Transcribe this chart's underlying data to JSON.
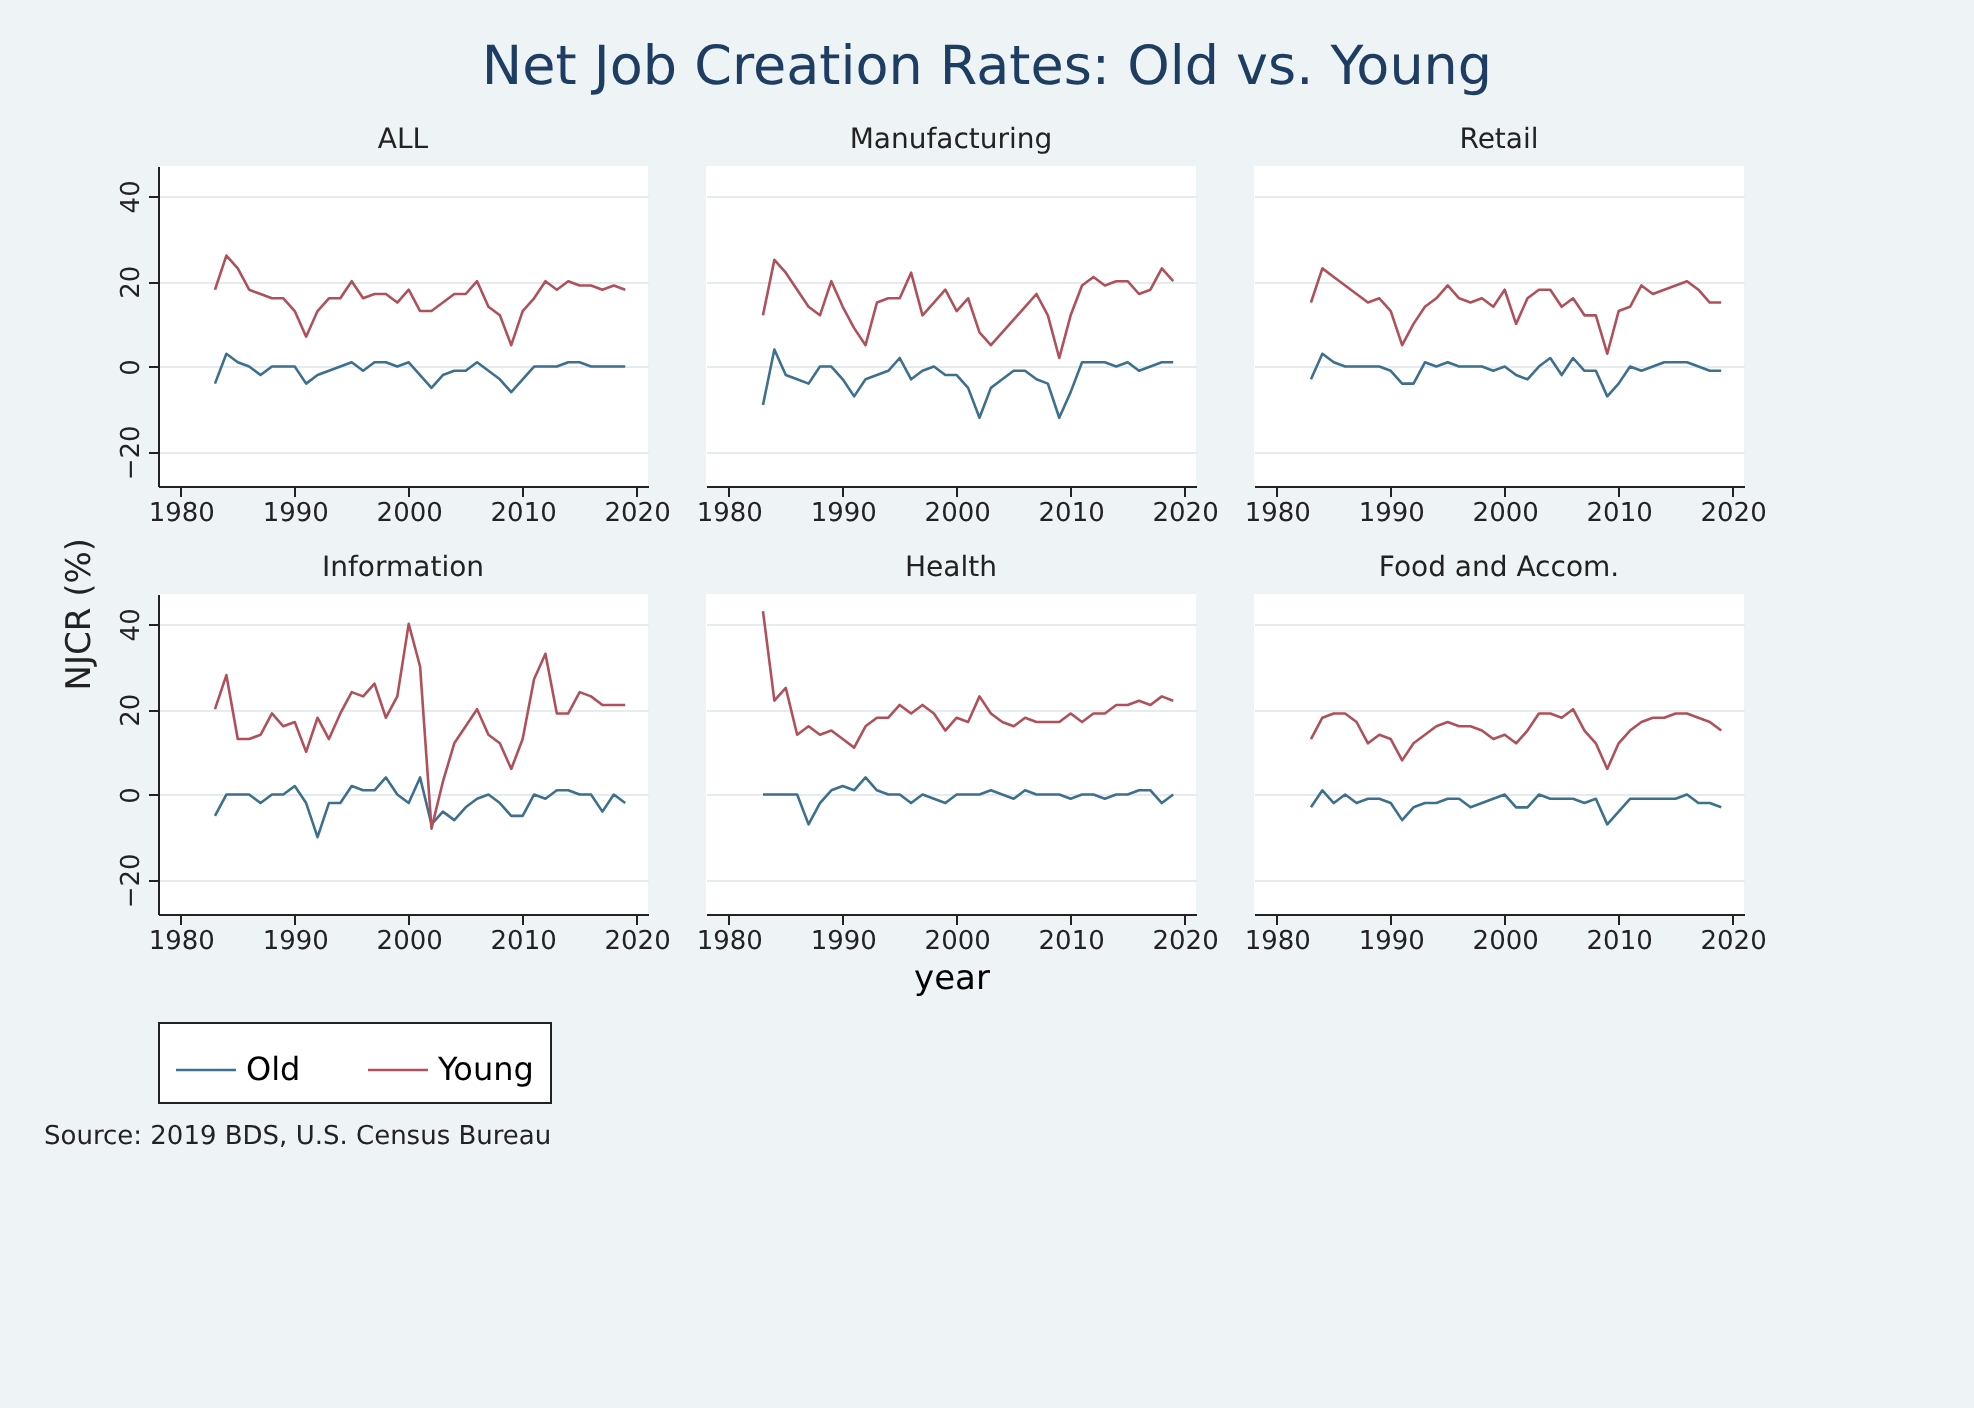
{
  "chart_data": [
    {
      "type": "line",
      "title": "ALL",
      "x": [
        1983,
        1984,
        1985,
        1986,
        1987,
        1988,
        1989,
        1990,
        1991,
        1992,
        1993,
        1994,
        1995,
        1996,
        1997,
        1998,
        1999,
        2000,
        2001,
        2002,
        2003,
        2004,
        2005,
        2006,
        2007,
        2008,
        2009,
        2010,
        2011,
        2012,
        2013,
        2014,
        2015,
        2016,
        2017,
        2018,
        2019
      ],
      "xlim": [
        1978,
        2021
      ],
      "xticks": [
        1980,
        1990,
        2000,
        2010,
        2020
      ],
      "ylim": [
        -28,
        47
      ],
      "yticks": [
        -20,
        0,
        20,
        40
      ],
      "grid": "y",
      "legend": "bottom",
      "series": [
        {
          "name": "Old",
          "color": "#3d6f8e",
          "values": [
            -4,
            3,
            1,
            0,
            -2,
            0,
            0,
            0,
            -4,
            -2,
            -1,
            0,
            1,
            -1,
            1,
            1,
            0,
            1,
            -2,
            -5,
            -2,
            -1,
            -1,
            1,
            -1,
            -3,
            -6,
            -3,
            0,
            0,
            0,
            1,
            1,
            0,
            0,
            0,
            0
          ]
        },
        {
          "name": "Young",
          "color": "#b0505a",
          "values": [
            18,
            26,
            23,
            18,
            17,
            16,
            16,
            13,
            7,
            13,
            16,
            16,
            20,
            16,
            17,
            17,
            15,
            18,
            13,
            13,
            15,
            17,
            17,
            20,
            14,
            12,
            5,
            13,
            16,
            20,
            18,
            20,
            19,
            19,
            18,
            19,
            18
          ]
        }
      ]
    },
    {
      "type": "line",
      "title": "Manufacturing",
      "x": [
        1983,
        1984,
        1985,
        1986,
        1987,
        1988,
        1989,
        1990,
        1991,
        1992,
        1993,
        1994,
        1995,
        1996,
        1997,
        1998,
        1999,
        2000,
        2001,
        2002,
        2003,
        2004,
        2005,
        2006,
        2007,
        2008,
        2009,
        2010,
        2011,
        2012,
        2013,
        2014,
        2015,
        2016,
        2017,
        2018,
        2019
      ],
      "xlim": [
        1978,
        2021
      ],
      "xticks": [
        1980,
        1990,
        2000,
        2010,
        2020
      ],
      "ylim": [
        -28,
        47
      ],
      "yticks": [
        -20,
        0,
        20,
        40
      ],
      "grid": "y",
      "legend": "bottom",
      "tick_labels": "x",
      "series": [
        {
          "name": "Old",
          "color": "#3d6f8e",
          "values": [
            -9,
            4,
            -2,
            -3,
            -4,
            0,
            0,
            -3,
            -7,
            -3,
            -2,
            -1,
            2,
            -3,
            -1,
            0,
            -2,
            -2,
            -5,
            -12,
            -5,
            -3,
            -1,
            -1,
            -3,
            -4,
            -12,
            -6,
            1,
            1,
            1,
            0,
            1,
            -1,
            0,
            1,
            1
          ]
        },
        {
          "name": "Young",
          "color": "#b0505a",
          "values": [
            12,
            25,
            22,
            18,
            14,
            12,
            20,
            14,
            9,
            5,
            15,
            16,
            16,
            22,
            12,
            15,
            18,
            13,
            16,
            8,
            5,
            8,
            11,
            14,
            17,
            12,
            2,
            12,
            19,
            21,
            19,
            20,
            20,
            17,
            18,
            23,
            20
          ]
        }
      ]
    },
    {
      "type": "line",
      "title": "Retail",
      "x": [
        1983,
        1984,
        1985,
        1986,
        1987,
        1988,
        1989,
        1990,
        1991,
        1992,
        1993,
        1994,
        1995,
        1996,
        1997,
        1998,
        1999,
        2000,
        2001,
        2002,
        2003,
        2004,
        2005,
        2006,
        2007,
        2008,
        2009,
        2010,
        2011,
        2012,
        2013,
        2014,
        2015,
        2016,
        2017,
        2018,
        2019
      ],
      "xlim": [
        1978,
        2021
      ],
      "xticks": [
        1980,
        1990,
        2000,
        2010,
        2020
      ],
      "ylim": [
        -28,
        47
      ],
      "yticks": [
        -20,
        0,
        20,
        40
      ],
      "grid": "y",
      "legend": "bottom",
      "tick_labels": "x",
      "series": [
        {
          "name": "Old",
          "color": "#3d6f8e",
          "values": [
            -3,
            3,
            1,
            0,
            0,
            0,
            0,
            -1,
            -4,
            -4,
            1,
            0,
            1,
            0,
            0,
            0,
            -1,
            0,
            -2,
            -3,
            0,
            2,
            -2,
            2,
            -1,
            -1,
            -7,
            -4,
            0,
            -1,
            0,
            1,
            1,
            1,
            0,
            -1,
            -1
          ]
        },
        {
          "name": "Young",
          "color": "#b0505a",
          "values": [
            15,
            23,
            21,
            19,
            17,
            15,
            16,
            13,
            5,
            10,
            14,
            16,
            19,
            16,
            15,
            16,
            14,
            18,
            10,
            16,
            18,
            18,
            14,
            16,
            12,
            12,
            3,
            13,
            14,
            19,
            17,
            18,
            19,
            20,
            18,
            15,
            15
          ]
        }
      ]
    },
    {
      "type": "line",
      "title": "Information",
      "x": [
        1983,
        1984,
        1985,
        1986,
        1987,
        1988,
        1989,
        1990,
        1991,
        1992,
        1993,
        1994,
        1995,
        1996,
        1997,
        1998,
        1999,
        2000,
        2001,
        2002,
        2003,
        2004,
        2005,
        2006,
        2007,
        2008,
        2009,
        2010,
        2011,
        2012,
        2013,
        2014,
        2015,
        2016,
        2017,
        2018,
        2019
      ],
      "xlim": [
        1978,
        2021
      ],
      "xticks": [
        1980,
        1990,
        2000,
        2010,
        2020
      ],
      "ylim": [
        -28,
        47
      ],
      "yticks": [
        -20,
        0,
        20,
        40
      ],
      "grid": "y",
      "legend": "bottom",
      "series": [
        {
          "name": "Old",
          "color": "#3d6f8e",
          "values": [
            -5,
            0,
            0,
            0,
            -2,
            0,
            0,
            2,
            -2,
            -10,
            -2,
            -2,
            2,
            1,
            1,
            4,
            0,
            -2,
            4,
            -7,
            -4,
            -6,
            -3,
            -1,
            0,
            -2,
            -5,
            -5,
            0,
            -1,
            1,
            1,
            0,
            0,
            -4,
            0,
            -2
          ]
        },
        {
          "name": "Young",
          "color": "#b0505a",
          "values": [
            20,
            28,
            13,
            13,
            14,
            19,
            16,
            17,
            10,
            18,
            13,
            19,
            24,
            23,
            26,
            18,
            23,
            40,
            30,
            -8,
            3,
            12,
            16,
            20,
            14,
            12,
            6,
            13,
            27,
            33,
            19,
            19,
            24,
            23,
            21,
            21,
            21
          ]
        }
      ]
    },
    {
      "type": "line",
      "title": "Health",
      "x": [
        1983,
        1984,
        1985,
        1986,
        1987,
        1988,
        1989,
        1990,
        1991,
        1992,
        1993,
        1994,
        1995,
        1996,
        1997,
        1998,
        1999,
        2000,
        2001,
        2002,
        2003,
        2004,
        2005,
        2006,
        2007,
        2008,
        2009,
        2010,
        2011,
        2012,
        2013,
        2014,
        2015,
        2016,
        2017,
        2018,
        2019
      ],
      "xlim": [
        1978,
        2021
      ],
      "xticks": [
        1980,
        1990,
        2000,
        2010,
        2020
      ],
      "ylim": [
        -28,
        47
      ],
      "yticks": [
        -20,
        0,
        20,
        40
      ],
      "grid": "y",
      "legend": "bottom",
      "tick_labels": "x",
      "xlabel": "year",
      "series": [
        {
          "name": "Old",
          "color": "#3d6f8e",
          "values": [
            0,
            0,
            0,
            0,
            -7,
            -2,
            1,
            2,
            1,
            4,
            1,
            0,
            0,
            -2,
            0,
            -1,
            -2,
            0,
            0,
            0,
            1,
            0,
            -1,
            1,
            0,
            0,
            0,
            -1,
            0,
            0,
            -1,
            0,
            0,
            1,
            1,
            -2,
            0
          ]
        },
        {
          "name": "Young",
          "color": "#b0505a",
          "values": [
            43,
            22,
            25,
            14,
            16,
            14,
            15,
            13,
            11,
            16,
            18,
            18,
            21,
            19,
            21,
            19,
            15,
            18,
            17,
            23,
            19,
            17,
            16,
            18,
            17,
            17,
            17,
            19,
            17,
            19,
            19,
            21,
            21,
            22,
            21,
            23,
            22
          ]
        }
      ]
    },
    {
      "type": "line",
      "title": "Food and Accom.",
      "x": [
        1983,
        1984,
        1985,
        1986,
        1987,
        1988,
        1989,
        1990,
        1991,
        1992,
        1993,
        1994,
        1995,
        1996,
        1997,
        1998,
        1999,
        2000,
        2001,
        2002,
        2003,
        2004,
        2005,
        2006,
        2007,
        2008,
        2009,
        2010,
        2011,
        2012,
        2013,
        2014,
        2015,
        2016,
        2017,
        2018,
        2019
      ],
      "xlim": [
        1978,
        2021
      ],
      "xticks": [
        1980,
        1990,
        2000,
        2010,
        2020
      ],
      "ylim": [
        -28,
        47
      ],
      "yticks": [
        -20,
        0,
        20,
        40
      ],
      "grid": "y",
      "legend": "bottom",
      "tick_labels": "x",
      "series": [
        {
          "name": "Old",
          "color": "#3d6f8e",
          "values": [
            -3,
            1,
            -2,
            0,
            -2,
            -1,
            -1,
            -2,
            -6,
            -3,
            -2,
            -2,
            -1,
            -1,
            -3,
            -2,
            -1,
            0,
            -3,
            -3,
            0,
            -1,
            -1,
            -1,
            -2,
            -1,
            -7,
            -4,
            -1,
            -1,
            -1,
            -1,
            -1,
            0,
            -2,
            -2,
            -3
          ]
        },
        {
          "name": "Young",
          "color": "#b0505a",
          "values": [
            13,
            18,
            19,
            19,
            17,
            12,
            14,
            13,
            8,
            12,
            14,
            16,
            17,
            16,
            16,
            15,
            13,
            14,
            12,
            15,
            19,
            19,
            18,
            20,
            15,
            12,
            6,
            12,
            15,
            17,
            18,
            18,
            19,
            19,
            18,
            17,
            15
          ]
        }
      ]
    },
    {
      "type": "other",
      "title": "Net Job Creation Rates: Old vs. Young",
      "ylabel": "NJCR (%)",
      "annotations": [
        "Source: 2019 BDS, U.S. Census Bureau"
      ]
    }
  ]
}
